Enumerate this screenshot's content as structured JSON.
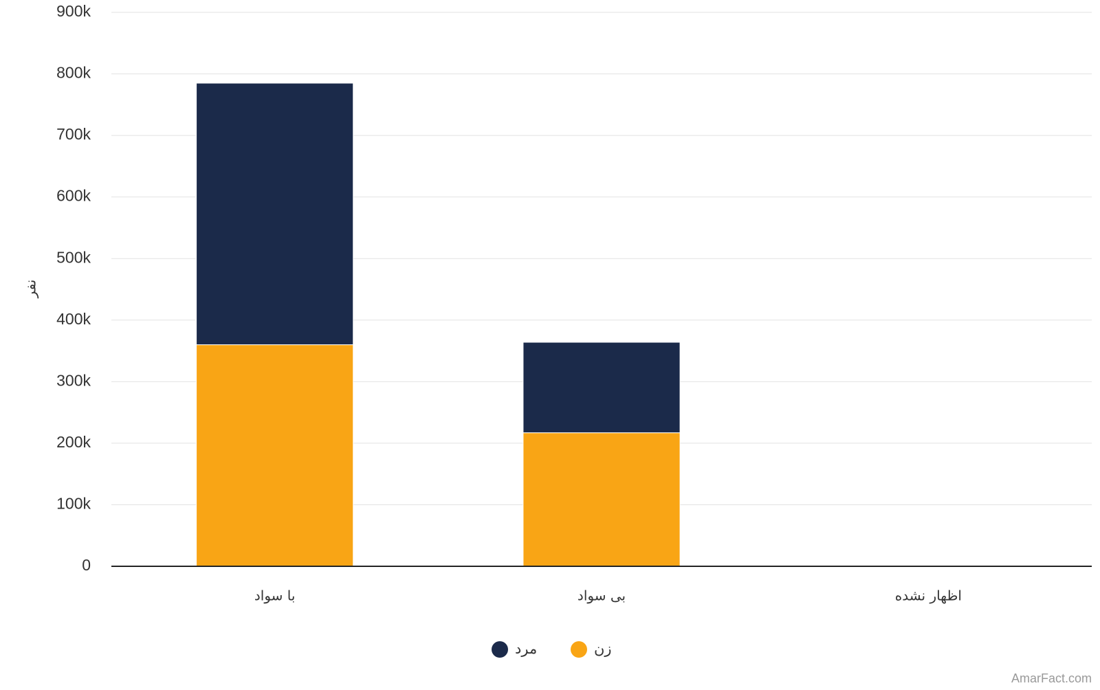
{
  "chart_data": {
    "type": "stacked-bar",
    "y_label": "نفر",
    "categories": [
      "با سواد",
      "بی سواد",
      "اظهار نشده"
    ],
    "series": [
      {
        "name": "زن",
        "color": "#f9a515",
        "values": [
          360000,
          217000,
          0
        ]
      },
      {
        "name": "مرد",
        "color": "#1b2a4a",
        "values": [
          425000,
          147000,
          0
        ]
      }
    ],
    "ylim": [
      0,
      900000
    ],
    "yticks": [
      0,
      {
        "value": 100000,
        "label": "100k"
      },
      {
        "value": 200000,
        "label": "200k"
      },
      {
        "value": 300000,
        "label": "300k"
      },
      {
        "value": 400000,
        "label": "400k"
      },
      {
        "value": 500000,
        "label": "500k"
      },
      {
        "value": 600000,
        "label": "600k"
      },
      {
        "value": 700000,
        "label": "700k"
      },
      {
        "value": 800000,
        "label": "800k"
      },
      {
        "value": 900000,
        "label": "900k"
      }
    ],
    "grid": true,
    "legend": "bottom",
    "watermark": "AmarFact.com"
  }
}
